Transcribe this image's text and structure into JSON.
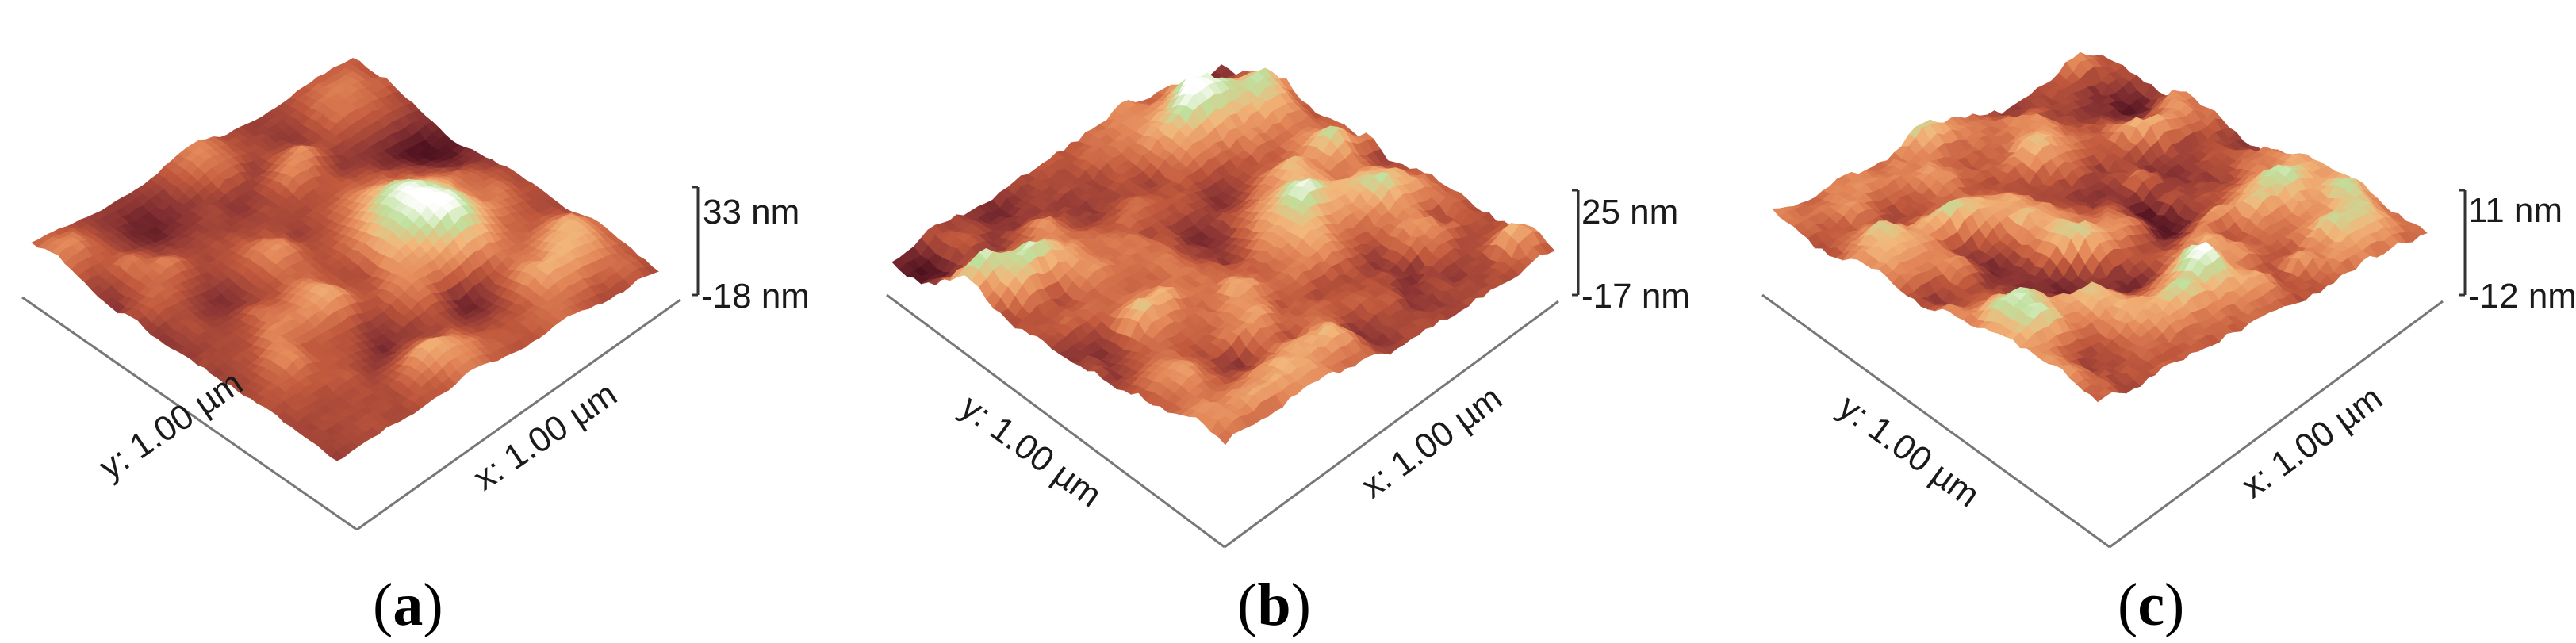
{
  "panels": [
    {
      "label_open": "(",
      "label_letter": "a",
      "label_close": ")",
      "x_axis": "x: 1.00 µm",
      "y_axis": "y: 1.00 µm",
      "z_max": "33 nm",
      "z_min": "-18 nm",
      "palette": [
        "#4a0f1e",
        "#8a3434",
        "#c1593d",
        "#e4895a",
        "#f2b67a",
        "#bfe09c",
        "#ffffff"
      ]
    },
    {
      "label_open": "(",
      "label_letter": "b",
      "label_close": ")",
      "x_axis": "x: 1.00 µm",
      "y_axis": "y: 1.00 µm",
      "z_max": "25 nm",
      "z_min": "-17 nm",
      "palette": [
        "#4a0f1e",
        "#8a3434",
        "#c1593d",
        "#e4895a",
        "#f2b67a",
        "#bfe09c",
        "#ffffff"
      ]
    },
    {
      "label_open": "(",
      "label_letter": "c",
      "label_close": ")",
      "x_axis": "x: 1.00 µm",
      "y_axis": "y: 1.00 µm",
      "z_max": "11 nm",
      "z_min": "-12 nm",
      "palette": [
        "#4a0f1e",
        "#8a3434",
        "#c1593d",
        "#e4895a",
        "#f2b67a",
        "#bfe09c",
        "#ffffff"
      ]
    }
  ]
}
